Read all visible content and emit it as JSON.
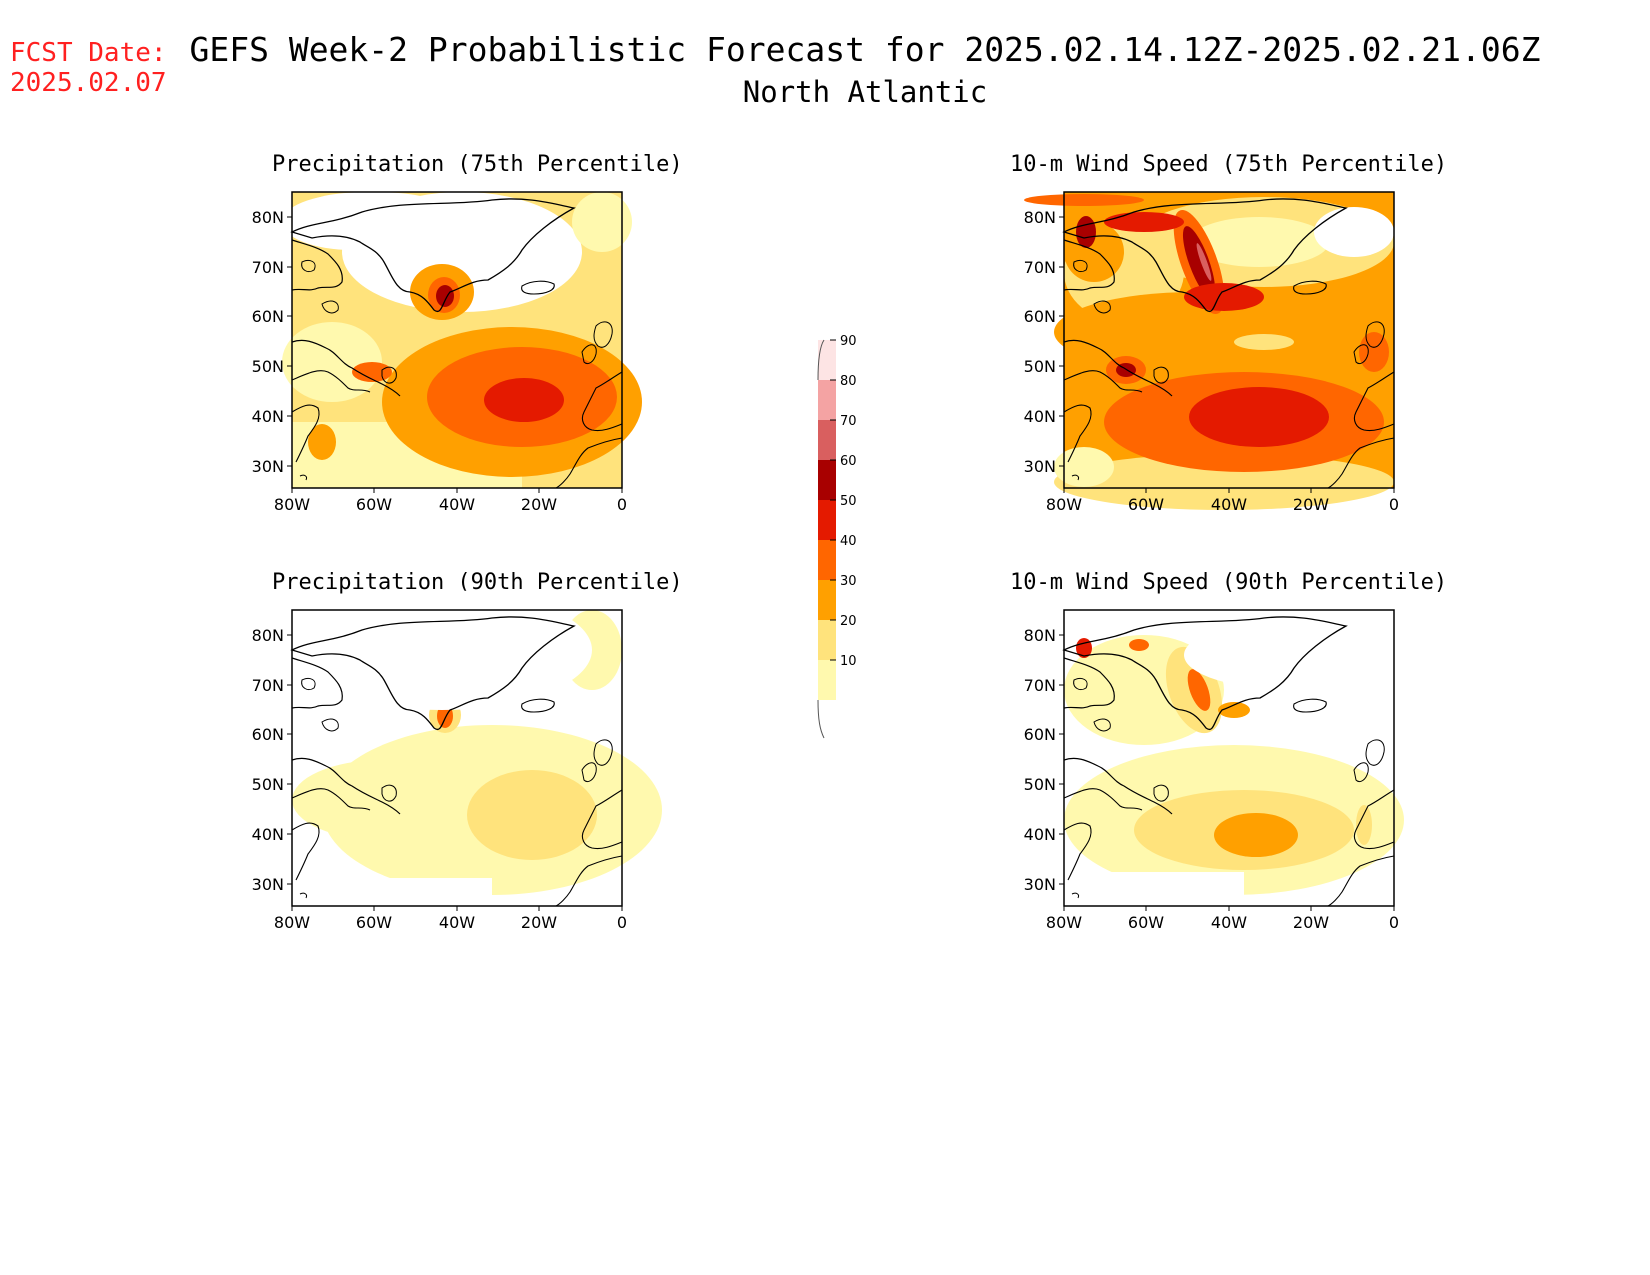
{
  "header": {
    "fcst_label": "FCST Date:",
    "fcst_date": "2025.02.07",
    "title": "GEFS Week-2 Probabilistic Forecast for 2025.02.14.12Z-2025.02.21.06Z",
    "subtitle": "North Atlantic"
  },
  "axes": {
    "lat_labels": [
      "80N",
      "70N",
      "60N",
      "50N",
      "40N",
      "30N"
    ],
    "lon_labels": [
      "80W",
      "60W",
      "40W",
      "20W",
      "0"
    ]
  },
  "colorbar": {
    "levels": [
      "10",
      "20",
      "30",
      "40",
      "50",
      "60",
      "70",
      "80",
      "90"
    ],
    "colors": [
      "#fff9ae",
      "#ffe37c",
      "#ffa000",
      "#ff6600",
      "#e41a00",
      "#a80000",
      "#d95f5f",
      "#f4a3a3",
      "#fde4e4"
    ]
  },
  "panels": [
    {
      "id": "precip75",
      "title": "Precipitation (75th Percentile)"
    },
    {
      "id": "wind75",
      "title": "10-m Wind Speed (75th Percentile)"
    },
    {
      "id": "precip90",
      "title": "Precipitation (90th Percentile)"
    },
    {
      "id": "wind90",
      "title": "10-m Wind Speed (90th Percentile)"
    }
  ]
}
